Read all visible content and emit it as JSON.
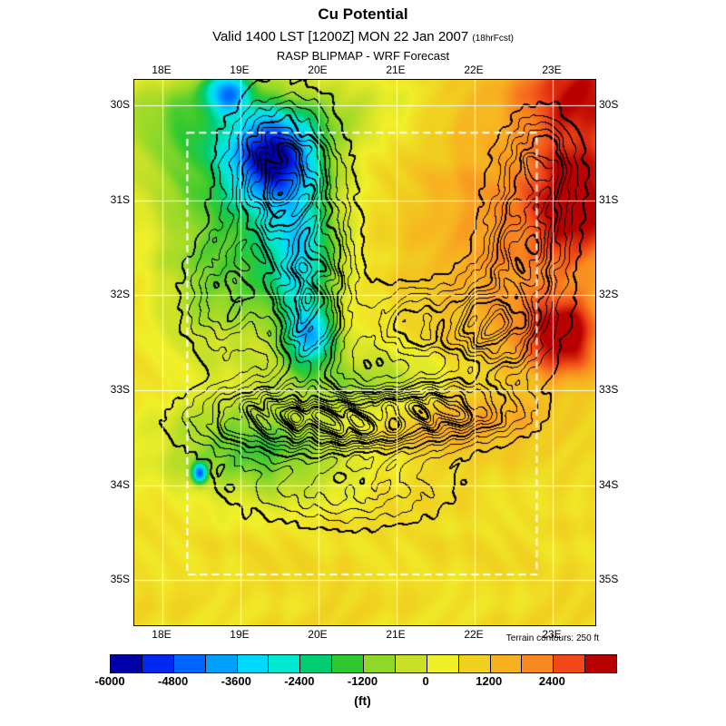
{
  "header": {
    "title": "Cu Potential",
    "valid_line": "Valid 1400 LST [1200Z] MON 22 Jan 2007",
    "fcst_suffix": "(18hrFcst)",
    "model_line": "RASP BLIPMAP - WRF Forecast"
  },
  "map": {
    "lon_ticks": [
      "18E",
      "19E",
      "20E",
      "21E",
      "22E",
      "23E"
    ],
    "lat_ticks": [
      "30S",
      "31S",
      "32S",
      "33S",
      "34S",
      "35S"
    ],
    "terrain_note": "Terrain contours: 250 ft"
  },
  "colorbar": {
    "unit": "(ft)",
    "labels": [
      "-6000",
      "-4800",
      "-3600",
      "-2400",
      "-1200",
      "0",
      "1200",
      "2400"
    ],
    "vmin": -6000,
    "vmax": 3600,
    "step": 600,
    "colors": [
      "#0000a8",
      "#0028f0",
      "#0064ff",
      "#00a0ff",
      "#00d8ff",
      "#00e8d0",
      "#00cc70",
      "#30c830",
      "#90d828",
      "#c8e028",
      "#f0f028",
      "#f0d020",
      "#f8b020",
      "#f88820",
      "#f04818",
      "#b80000"
    ]
  },
  "chart_data": {
    "type": "heatmap",
    "title": "Cu Potential",
    "units": "ft",
    "value_range": [
      -6000,
      3600
    ],
    "colorbar_tick_values": [
      -6000,
      -4800,
      -3600,
      -2400,
      -1200,
      0,
      1200,
      2400
    ],
    "x_ticks": [
      "18E",
      "19E",
      "20E",
      "21E",
      "22E",
      "23E"
    ],
    "y_ticks": [
      "30S",
      "31S",
      "32S",
      "33S",
      "34S",
      "35S"
    ],
    "overlay": "terrain contours at 250 ft interval, white graticule, white dashed inner domain"
  },
  "field_model": {
    "base": 800,
    "bumps": [
      [
        0.3,
        0.14,
        0.1,
        0.09,
        -5600
      ],
      [
        0.2,
        0.02,
        0.05,
        0.04,
        -4000
      ],
      [
        0.36,
        0.32,
        0.08,
        0.12,
        -3000
      ],
      [
        0.38,
        0.47,
        0.055,
        0.06,
        -3600
      ],
      [
        0.2,
        0.3,
        0.22,
        0.22,
        -2000
      ],
      [
        0.1,
        0.08,
        0.15,
        0.1,
        -1600
      ],
      [
        0.26,
        0.68,
        0.2,
        0.09,
        -2200
      ],
      [
        0.14,
        0.72,
        0.016,
        0.018,
        -4500
      ],
      [
        0.52,
        0.55,
        0.16,
        0.06,
        -1500
      ],
      [
        0.47,
        0.06,
        0.18,
        0.08,
        -900
      ],
      [
        0.97,
        0.02,
        0.14,
        0.1,
        2600
      ],
      [
        0.96,
        0.22,
        0.1,
        0.1,
        2500
      ],
      [
        0.93,
        0.47,
        0.08,
        0.07,
        2800
      ],
      [
        0.82,
        0.28,
        0.22,
        0.25,
        1400
      ],
      [
        0.7,
        0.63,
        0.22,
        0.05,
        900
      ],
      [
        0.02,
        0.35,
        0.06,
        0.18,
        500
      ]
    ]
  },
  "terrain_model": {
    "step": 150,
    "bumps": [
      [
        0.32,
        0.18,
        0.1,
        0.12,
        1600
      ],
      [
        0.38,
        0.4,
        0.08,
        0.15,
        1500
      ],
      [
        0.3,
        0.62,
        0.15,
        0.06,
        1400
      ],
      [
        0.5,
        0.63,
        0.18,
        0.05,
        1500
      ],
      [
        0.68,
        0.6,
        0.15,
        0.05,
        1300
      ],
      [
        0.78,
        0.45,
        0.1,
        0.08,
        1600
      ],
      [
        0.85,
        0.3,
        0.08,
        0.1,
        1200
      ],
      [
        0.88,
        0.15,
        0.07,
        0.08,
        1000
      ],
      [
        0.6,
        0.45,
        0.08,
        0.06,
        900
      ],
      [
        0.2,
        0.4,
        0.08,
        0.1,
        800
      ],
      [
        0.45,
        0.75,
        0.2,
        0.06,
        700
      ]
    ]
  }
}
